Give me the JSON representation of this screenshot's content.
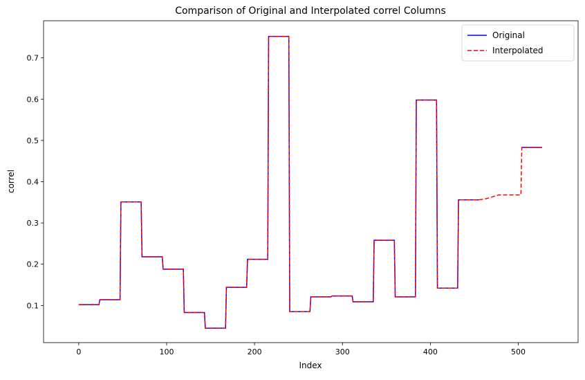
{
  "chart_data": {
    "type": "line",
    "title": "Comparison of Original and Interpolated correl Columns",
    "xlabel": "Index",
    "ylabel": "correl",
    "xlim": [
      -40,
      568
    ],
    "ylim": [
      0.01,
      0.79
    ],
    "x_ticks": [
      0,
      100,
      200,
      300,
      400,
      500
    ],
    "y_ticks": [
      0.1,
      0.2,
      0.3,
      0.4,
      0.5,
      0.6,
      0.7
    ],
    "grid": false,
    "legend_position": "top-right",
    "series": [
      {
        "name": "Original",
        "color": "#0000ff",
        "style": "solid",
        "points": [
          [
            0,
            0.102
          ],
          [
            23,
            0.102
          ],
          [
            24,
            0.114
          ],
          [
            47,
            0.114
          ],
          [
            48,
            0.351
          ],
          [
            71,
            0.351
          ],
          [
            72,
            0.218
          ],
          [
            95,
            0.218
          ],
          [
            96,
            0.188
          ],
          [
            119,
            0.188
          ],
          [
            120,
            0.083
          ],
          [
            143,
            0.083
          ],
          [
            144,
            0.045
          ],
          [
            167,
            0.045
          ],
          [
            168,
            0.144
          ],
          [
            191,
            0.144
          ],
          [
            192,
            0.212
          ],
          [
            215,
            0.212
          ],
          [
            216,
            0.752
          ],
          [
            239,
            0.752
          ],
          [
            240,
            0.085
          ],
          [
            263,
            0.085
          ],
          [
            264,
            0.121
          ],
          [
            287,
            0.121
          ],
          [
            288,
            0.123
          ],
          [
            311,
            0.123
          ],
          [
            312,
            0.109
          ],
          [
            335,
            0.109
          ],
          [
            336,
            0.258
          ],
          [
            359,
            0.258
          ],
          [
            360,
            0.121
          ],
          [
            383,
            0.121
          ],
          [
            384,
            0.598
          ],
          [
            407,
            0.598
          ],
          [
            408,
            0.142
          ],
          [
            431,
            0.142
          ],
          [
            432,
            0.356
          ],
          [
            455,
            0.356
          ]
        ],
        "points_tail": [
          [
            504,
            0.483
          ],
          [
            527,
            0.483
          ]
        ]
      },
      {
        "name": "Interpolated",
        "color": "#ff0000",
        "style": "dashed",
        "points": [
          [
            0,
            0.102
          ],
          [
            23,
            0.102
          ],
          [
            24,
            0.114
          ],
          [
            47,
            0.114
          ],
          [
            48,
            0.351
          ],
          [
            71,
            0.351
          ],
          [
            72,
            0.218
          ],
          [
            95,
            0.218
          ],
          [
            96,
            0.188
          ],
          [
            119,
            0.188
          ],
          [
            120,
            0.083
          ],
          [
            143,
            0.083
          ],
          [
            144,
            0.045
          ],
          [
            167,
            0.045
          ],
          [
            168,
            0.144
          ],
          [
            191,
            0.144
          ],
          [
            192,
            0.212
          ],
          [
            215,
            0.212
          ],
          [
            216,
            0.752
          ],
          [
            239,
            0.752
          ],
          [
            240,
            0.085
          ],
          [
            263,
            0.085
          ],
          [
            264,
            0.121
          ],
          [
            287,
            0.121
          ],
          [
            288,
            0.123
          ],
          [
            311,
            0.123
          ],
          [
            312,
            0.109
          ],
          [
            335,
            0.109
          ],
          [
            336,
            0.258
          ],
          [
            359,
            0.258
          ],
          [
            360,
            0.121
          ],
          [
            383,
            0.121
          ],
          [
            384,
            0.598
          ],
          [
            407,
            0.598
          ],
          [
            408,
            0.142
          ],
          [
            431,
            0.142
          ],
          [
            432,
            0.356
          ],
          [
            455,
            0.356
          ],
          [
            462,
            0.358
          ],
          [
            470,
            0.363
          ],
          [
            478,
            0.368
          ],
          [
            503,
            0.368
          ],
          [
            504,
            0.483
          ],
          [
            527,
            0.483
          ]
        ]
      }
    ]
  }
}
